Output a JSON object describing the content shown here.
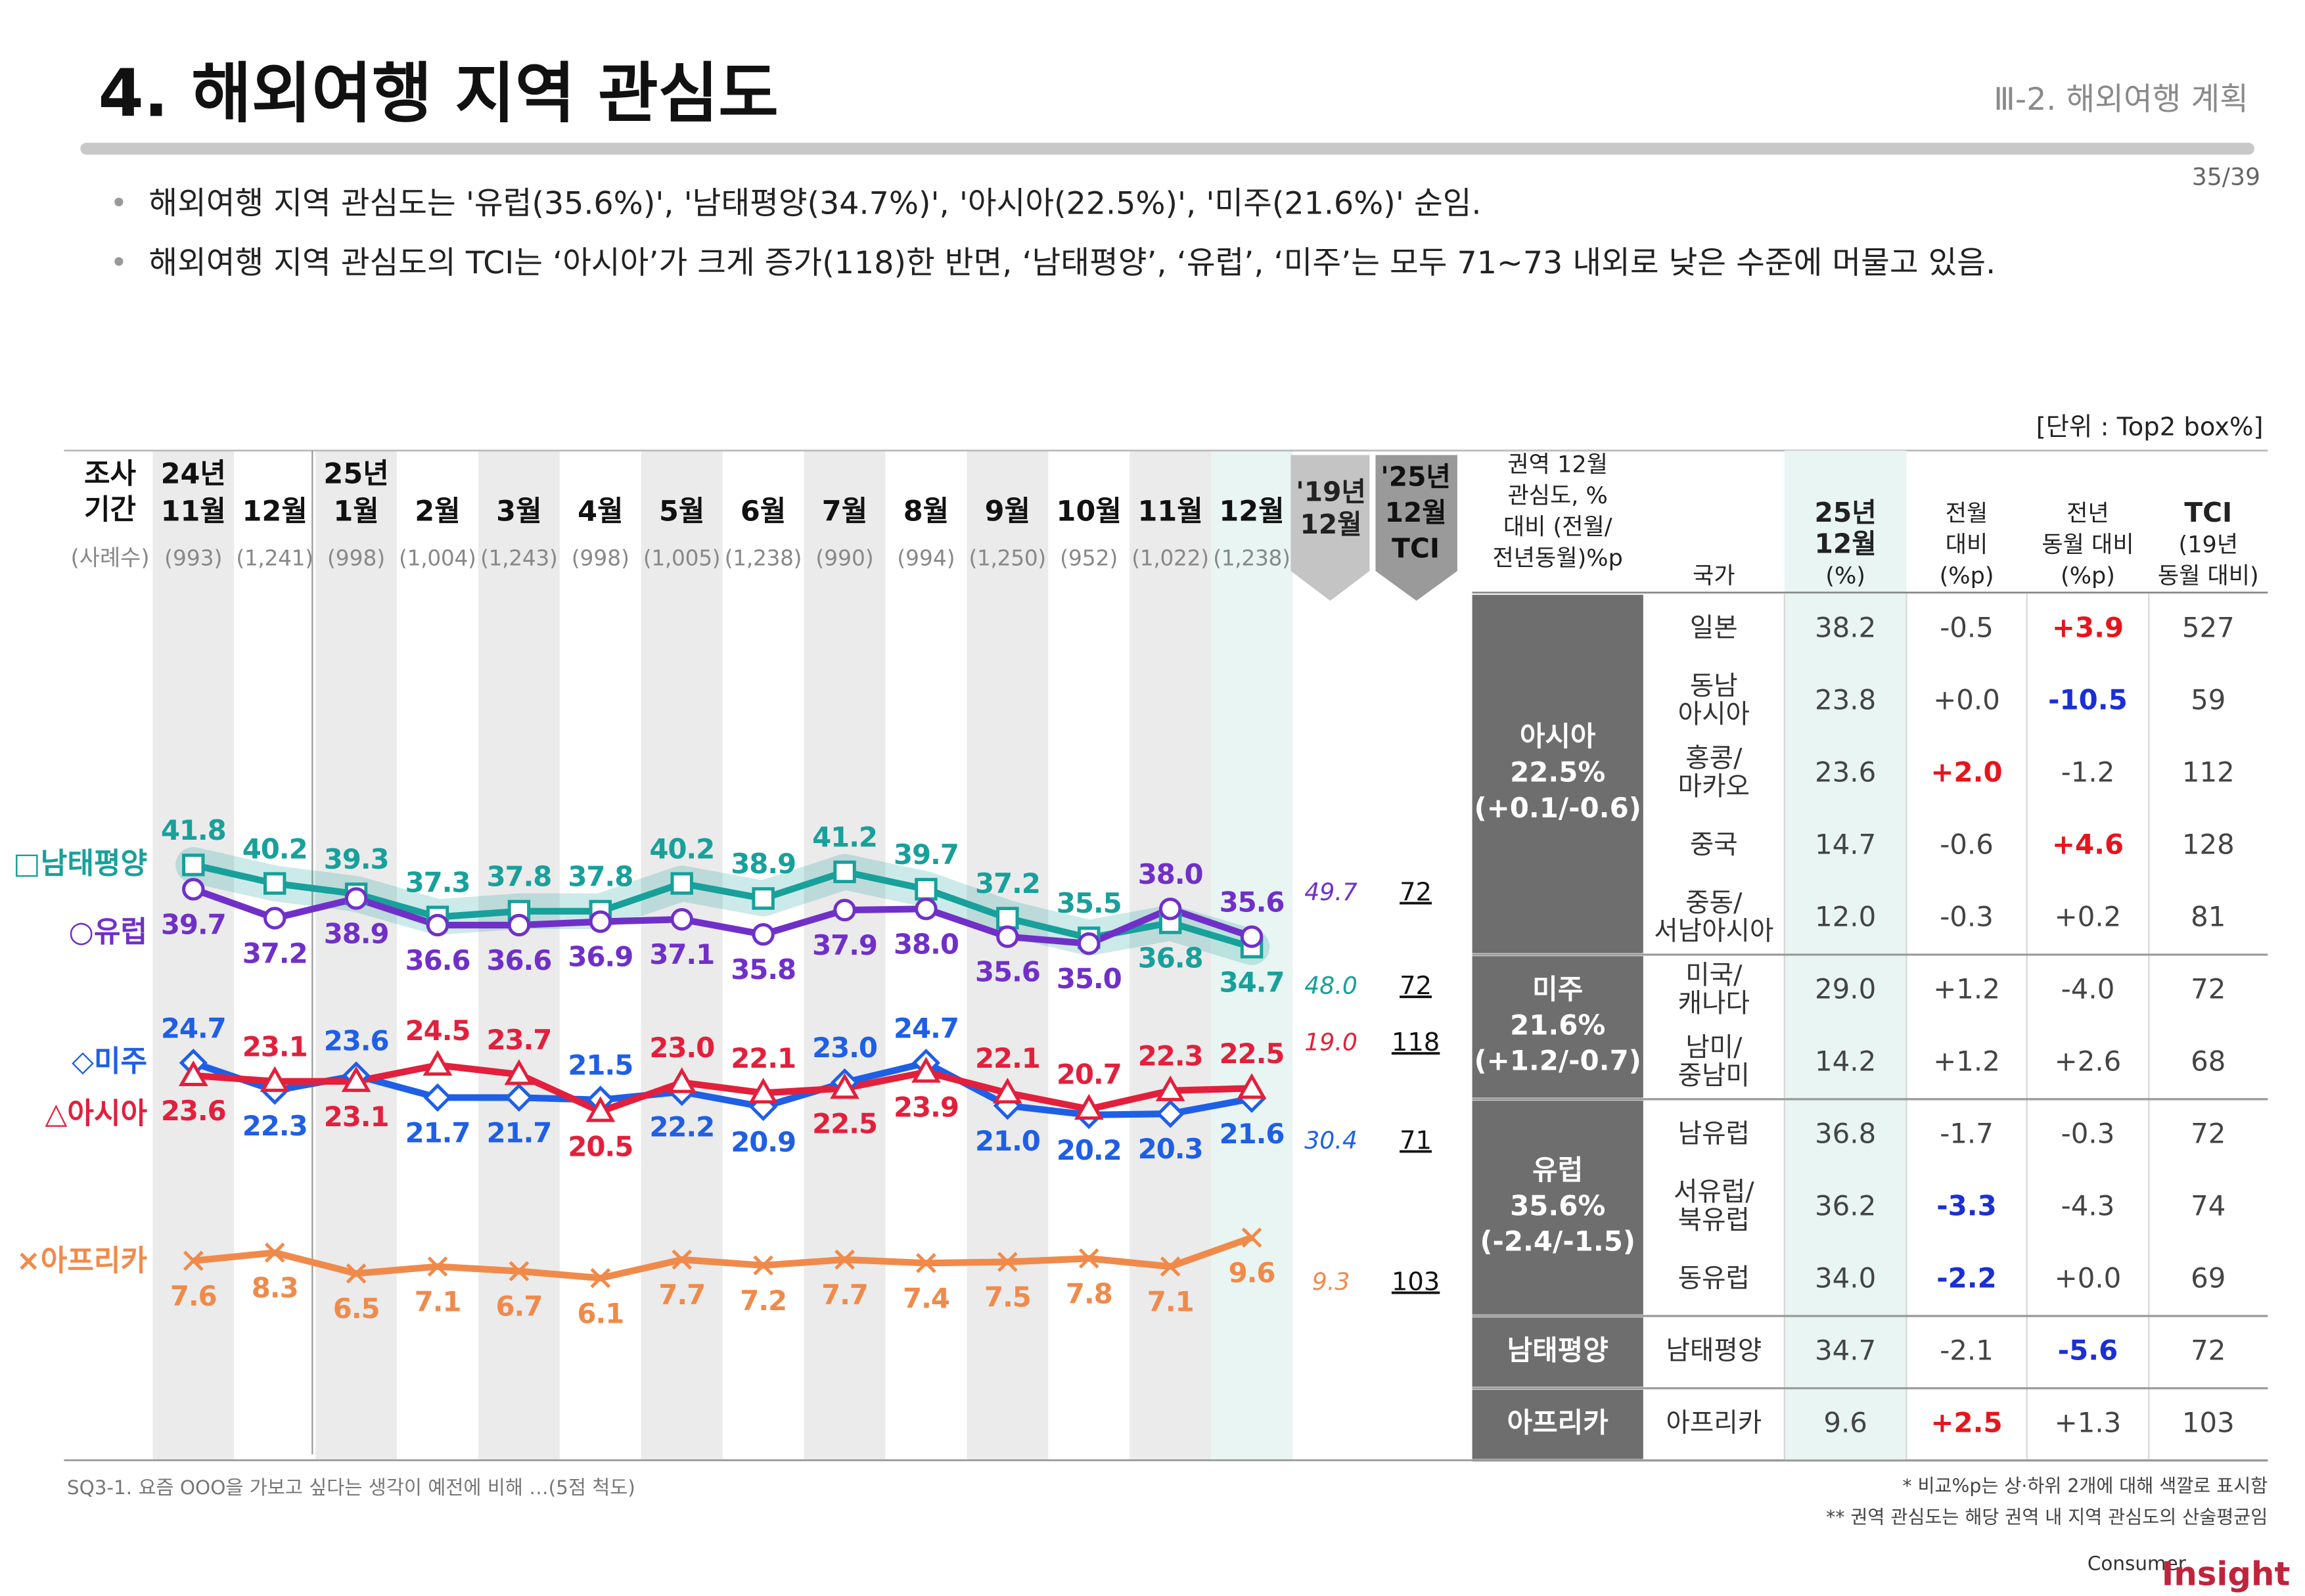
{
  "header": {
    "title": "4. 해외여행 지역 관심도",
    "section": "Ⅲ-2. 해외여행 계획",
    "page": "35/39"
  },
  "bullets": [
    "해외여행 지역 관심도는 '유럽(35.6%)', '남태평양(34.7%)', '아시아(22.5%)', '미주(21.6%)' 순임.",
    "해외여행 지역 관심도의 TCI는 ‘아시아’가 크게 증가(118)한 반면, ‘남태평양’, ‘유럽’, ‘미주’는 모두 71~73 내외로 낮은 수준에 머물고 있음."
  ],
  "unit": "[단위 : Top2 box%]",
  "chart_data": {
    "type": "line",
    "row_labels": {
      "period": [
        "조사",
        "기간"
      ],
      "sample": "(사례수)"
    },
    "years": [
      "24년",
      null,
      "25년",
      null,
      null,
      null,
      null,
      null,
      null,
      null,
      null,
      null,
      null,
      null
    ],
    "categories": [
      "11월",
      "12월",
      "1월",
      "2월",
      "3월",
      "4월",
      "5월",
      "6월",
      "7월",
      "8월",
      "9월",
      "10월",
      "11월",
      "12월"
    ],
    "sample_sizes": [
      "(993)",
      "(1,241)",
      "(998)",
      "(1,004)",
      "(1,243)",
      "(998)",
      "(1,005)",
      "(1,238)",
      "(990)",
      "(994)",
      "(1,250)",
      "(952)",
      "(1,022)",
      "(1,238)"
    ],
    "base_header": [
      "'19년",
      "12월"
    ],
    "tci_header": [
      "'25년",
      "12월",
      "TCI"
    ],
    "ylim": [
      0,
      60
    ],
    "shade_color": "#ebebeb",
    "highlight_color": "#e8f5f2",
    "series": [
      {
        "name": "□남태평양",
        "color": "#18a09b",
        "marker": "square",
        "values": [
          41.8,
          40.2,
          39.3,
          37.3,
          37.8,
          37.8,
          40.2,
          38.9,
          41.2,
          39.7,
          37.2,
          35.5,
          36.8,
          34.7
        ],
        "value_labels": [
          "41.8",
          "40.2",
          "39.3",
          "37.3",
          "37.8",
          "37.8",
          "40.2",
          "38.9",
          "41.2",
          "39.7",
          "37.2",
          "35.5",
          "36.8",
          "34.7"
        ],
        "base_2019": "48.0",
        "tci": 72
      },
      {
        "name": "○유럽",
        "color": "#7030c8",
        "marker": "circle",
        "values": [
          39.7,
          37.2,
          38.9,
          36.6,
          36.6,
          36.9,
          37.1,
          35.8,
          37.9,
          38.0,
          35.6,
          35.0,
          38.0,
          35.6
        ],
        "value_labels": [
          "39.7",
          "37.2",
          "38.9",
          "36.6",
          "36.6",
          "36.9",
          "37.1",
          "35.8",
          "37.9",
          "38.0",
          "35.6",
          "35.0",
          "38.0",
          "35.6"
        ],
        "base_2019": "49.7",
        "tci": 72
      },
      {
        "name": "◇미주",
        "color": "#1f5fe6",
        "marker": "diamond",
        "values": [
          24.7,
          22.3,
          23.6,
          21.7,
          21.7,
          21.5,
          22.2,
          20.9,
          23.0,
          24.7,
          21.0,
          20.2,
          20.3,
          21.6
        ],
        "value_labels": [
          "24.7",
          "22.3",
          "23.6",
          "21.7",
          "21.7",
          "21.5",
          "22.2",
          "20.9",
          "23.0",
          "24.7",
          "21.0",
          "20.2",
          "20.3",
          "21.6"
        ],
        "base_2019": "30.4",
        "tci": 71
      },
      {
        "name": "△아시아",
        "color": "#e2203c",
        "marker": "triangle",
        "values": [
          23.6,
          23.1,
          23.1,
          24.5,
          23.7,
          20.5,
          23.0,
          22.1,
          22.5,
          23.9,
          22.1,
          20.7,
          22.3,
          22.5
        ],
        "value_labels": [
          "23.6",
          "23.1",
          "23.1",
          "24.5",
          "23.7",
          "20.5",
          "23.0",
          "22.1",
          "22.5",
          "23.9",
          "22.1",
          "20.7",
          "22.3",
          "22.5"
        ],
        "base_2019": "19.0",
        "tci": 118
      },
      {
        "name": "×아프리카",
        "color": "#f08a4b",
        "marker": "x",
        "values": [
          7.6,
          8.3,
          6.5,
          7.1,
          6.7,
          6.1,
          7.7,
          7.2,
          7.7,
          7.4,
          7.5,
          7.8,
          7.1,
          9.6
        ],
        "value_labels": [
          "7.6",
          "8.3",
          "6.5",
          "7.1",
          "6.7",
          "6.1",
          "7.7",
          "7.2",
          "7.7",
          "7.4",
          "7.5",
          "7.8",
          "7.1",
          "9.6"
        ],
        "base_2019": "9.3",
        "tci": 103
      }
    ]
  },
  "table": {
    "up_color": "#e8141c",
    "down_color": "#1a2fd6",
    "headers": {
      "region": [
        "권역 12월",
        "관심도, %",
        "대비 (전월/",
        "전년동월)%p"
      ],
      "country": [
        "국가"
      ],
      "current": [
        "25년",
        "12월",
        "(%)"
      ],
      "mom": [
        "전월",
        "대비",
        "(%p)"
      ],
      "yoy": [
        "전년",
        "동월 대비",
        "(%p)"
      ],
      "tci": [
        "TCI",
        "(19년",
        "동월 대비)"
      ]
    },
    "groups": [
      {
        "label": [
          "아시아",
          "22.5%",
          "(+0.1/-0.6)"
        ],
        "rows": [
          {
            "country": [
              "일본"
            ],
            "cells": [
              "38.2",
              "-0.5",
              "+3.9",
              "527"
            ],
            "highlight": [
              null,
              null,
              "up",
              null
            ]
          },
          {
            "country": [
              "동남",
              "아시아"
            ],
            "cells": [
              "23.8",
              "+0.0",
              "-10.5",
              "59"
            ],
            "highlight": [
              null,
              null,
              "down",
              null
            ]
          },
          {
            "country": [
              "홍콩/",
              "마카오"
            ],
            "cells": [
              "23.6",
              "+2.0",
              "-1.2",
              "112"
            ],
            "highlight": [
              null,
              "up",
              null,
              null
            ]
          },
          {
            "country": [
              "중국"
            ],
            "cells": [
              "14.7",
              "-0.6",
              "+4.6",
              "128"
            ],
            "highlight": [
              null,
              null,
              "up",
              null
            ]
          },
          {
            "country": [
              "중동/",
              "서남아시아"
            ],
            "cells": [
              "12.0",
              "-0.3",
              "+0.2",
              "81"
            ],
            "highlight": [
              null,
              null,
              null,
              null
            ]
          }
        ]
      },
      {
        "label": [
          "미주",
          "21.6%",
          "(+1.2/-0.7)"
        ],
        "rows": [
          {
            "country": [
              "미국/",
              "캐나다"
            ],
            "cells": [
              "29.0",
              "+1.2",
              "-4.0",
              "72"
            ],
            "highlight": [
              null,
              null,
              null,
              null
            ]
          },
          {
            "country": [
              "남미/",
              "중남미"
            ],
            "cells": [
              "14.2",
              "+1.2",
              "+2.6",
              "68"
            ],
            "highlight": [
              null,
              null,
              null,
              null
            ]
          }
        ]
      },
      {
        "label": [
          "유럽",
          "35.6%",
          "(-2.4/-1.5)"
        ],
        "rows": [
          {
            "country": [
              "남유럽"
            ],
            "cells": [
              "36.8",
              "-1.7",
              "-0.3",
              "72"
            ],
            "highlight": [
              null,
              null,
              null,
              null
            ]
          },
          {
            "country": [
              "서유럽/",
              "북유럽"
            ],
            "cells": [
              "36.2",
              "-3.3",
              "-4.3",
              "74"
            ],
            "highlight": [
              null,
              "down",
              null,
              null
            ]
          },
          {
            "country": [
              "동유럽"
            ],
            "cells": [
              "34.0",
              "-2.2",
              "+0.0",
              "69"
            ],
            "highlight": [
              null,
              "down",
              null,
              null
            ]
          }
        ]
      },
      {
        "label": [
          "남태평양"
        ],
        "rows": [
          {
            "country": [
              "남태평양"
            ],
            "cells": [
              "34.7",
              "-2.1",
              "-5.6",
              "72"
            ],
            "highlight": [
              null,
              null,
              "down",
              null
            ]
          }
        ]
      },
      {
        "label": [
          "아프리카"
        ],
        "rows": [
          {
            "country": [
              "아프리카"
            ],
            "cells": [
              "9.6",
              "+2.5",
              "+1.3",
              "103"
            ],
            "highlight": [
              null,
              "up",
              null,
              null
            ]
          }
        ]
      }
    ]
  },
  "footnotes": {
    "question": "SQ3-1. 요즘 OOO을 가보고 싶다는 생각이 예전에 비해 …(5점 척도)",
    "notes": [
      "* 비교%p는 상·하위 2개에 대해 색깔로 표시함",
      "** 권역 관심도는 해당 권역 내 지역 관심도의 산술평균임"
    ]
  },
  "logo": {
    "small": "Consumer",
    "large": "Insight"
  }
}
